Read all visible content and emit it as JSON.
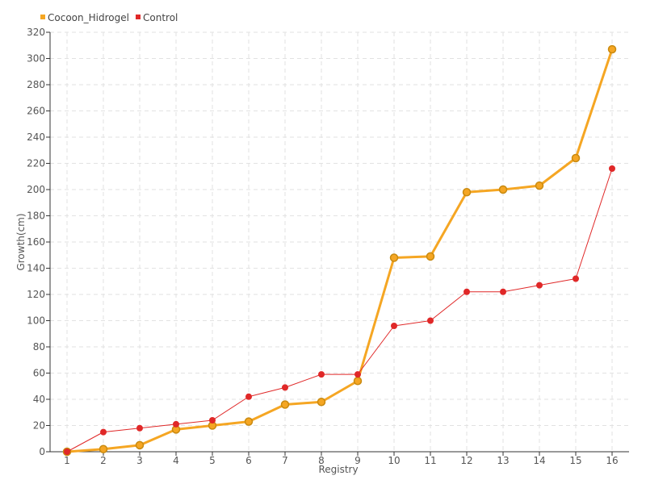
{
  "chart_data": {
    "type": "line",
    "title": "",
    "xlabel": "Registry",
    "ylabel": "Growth(cm)",
    "categories": [
      "1",
      "2",
      "3",
      "4",
      "5",
      "6",
      "7",
      "8",
      "9",
      "10",
      "11",
      "12",
      "13",
      "14",
      "15",
      "16"
    ],
    "ylim": [
      0,
      320
    ],
    "yticks": [
      0,
      20,
      40,
      60,
      80,
      100,
      120,
      140,
      160,
      180,
      200,
      220,
      240,
      260,
      280,
      300,
      320
    ],
    "grid": true,
    "legend_position": "top-left",
    "series": [
      {
        "name": "Cocoon_Hidrogel",
        "color": "#f5a623",
        "values": [
          0,
          2,
          5,
          17,
          20,
          23,
          36,
          38,
          54,
          148,
          149,
          198,
          200,
          203,
          224,
          307
        ]
      },
      {
        "name": "Control",
        "color": "#e02828",
        "values": [
          0,
          15,
          18,
          21,
          24,
          42,
          49,
          59,
          59,
          96,
          100,
          122,
          122,
          127,
          132,
          216
        ]
      }
    ]
  }
}
